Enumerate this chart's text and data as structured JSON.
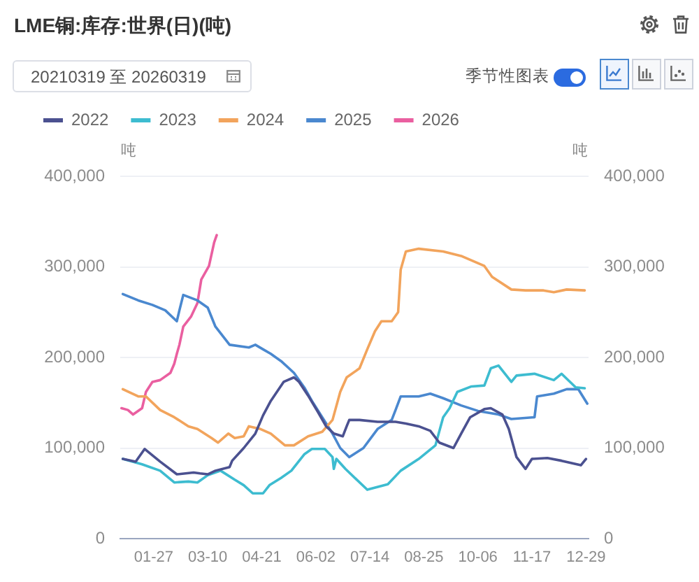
{
  "chart_data": {
    "type": "line",
    "title": "LME铜:库存:世界(日)(吨)",
    "annotations": [
      "20210319 至 20260319",
      "季节性图表"
    ],
    "ylabel": "吨",
    "y2label": "吨",
    "xlim": [
      "--01-01",
      "--12-31"
    ],
    "xticks": [
      {
        "value": "--01-27",
        "label": "01-27"
      },
      {
        "value": "--03-10",
        "label": "03-10"
      },
      {
        "value": "--04-21",
        "label": "04-21"
      },
      {
        "value": "--06-02",
        "label": "06-02"
      },
      {
        "value": "--07-14",
        "label": "07-14"
      },
      {
        "value": "--08-25",
        "label": "08-25"
      },
      {
        "value": "--10-06",
        "label": "10-06"
      },
      {
        "value": "--11-17",
        "label": "11-17"
      },
      {
        "value": "--12-29",
        "label": "12-29"
      }
    ],
    "ylim": [
      0,
      400000
    ],
    "yticks": [
      0,
      {
        "value": 100000,
        "label": "100,000"
      },
      {
        "value": 200000,
        "label": "200,000"
      },
      {
        "value": 300000,
        "label": "300,000"
      },
      {
        "value": 400000,
        "label": "400,000"
      }
    ],
    "y2lim": [
      0,
      400000
    ],
    "y2ticks": [
      0,
      {
        "value": 100000,
        "label": "100,000"
      },
      {
        "value": 200000,
        "label": "200,000"
      },
      {
        "value": 300000,
        "label": "300,000"
      },
      {
        "value": 400000,
        "label": "400,000"
      }
    ],
    "grid": "y",
    "legend": "top left",
    "marker": "none",
    "series": [
      {
        "name": "2022",
        "color": "#4b5190",
        "x": [
          "--01-03",
          "--01-13",
          "--01-20",
          "--02-01",
          "--02-14",
          "--02-27",
          "--03-04",
          "--03-10",
          "--03-16",
          "--03-27",
          "--03-29",
          "--04-07",
          "--04-16",
          "--04-22",
          "--04-28",
          "--05-08",
          "--05-16",
          "--05-20",
          "--05-27",
          "--06-04",
          "--06-10",
          "--06-16",
          "--06-23",
          "--06-26",
          "--06-28",
          "--07-06",
          "--07-20",
          "--08-03",
          "--08-11",
          "--08-21",
          "--08-30",
          "--09-06",
          "--09-17",
          "--09-23",
          "--09-30",
          "--10-11",
          "--10-16",
          "--10-25",
          "--10-30",
          "--11-05",
          "--11-12",
          "--11-17",
          "--11-29",
          "--12-10",
          "--12-25",
          "--12-29"
        ],
        "values": [
          88000,
          85000,
          99000,
          85000,
          71000,
          73000,
          72000,
          71000,
          75000,
          79000,
          86000,
          100000,
          116000,
          136000,
          152000,
          173000,
          178000,
          173000,
          158000,
          139000,
          124000,
          116000,
          113000,
          124000,
          131000,
          131000,
          129000,
          129000,
          127000,
          124000,
          119000,
          106000,
          100000,
          116000,
          134000,
          143000,
          144000,
          137000,
          121000,
          90000,
          77000,
          88000,
          89000,
          86000,
          81000,
          88000
        ]
      },
      {
        "name": "2023",
        "color": "#3dbcd0",
        "x": [
          "--01-03",
          "--01-18",
          "--02-01",
          "--02-12",
          "--02-23",
          "--03-02",
          "--03-10",
          "--03-20",
          "--03-31",
          "--04-07",
          "--04-14",
          "--04-22",
          "--04-27",
          "--05-06",
          "--05-14",
          "--05-24",
          "--05-30",
          "--06-09",
          "--06-15",
          "--06-16",
          "--06-18",
          "--06-25",
          "--07-12",
          "--07-28",
          "--08-07",
          "--08-21",
          "--09-03",
          "--09-09",
          "--09-14",
          "--09-20",
          "--10-01",
          "--10-11",
          "--10-16",
          "--10-22",
          "--11-01",
          "--11-05",
          "--11-19",
          "--12-04",
          "--12-10",
          "--12-21",
          "--12-28"
        ],
        "values": [
          88000,
          82000,
          75000,
          62000,
          63000,
          62000,
          70000,
          75000,
          65000,
          59000,
          50000,
          50000,
          59000,
          67000,
          75000,
          93000,
          99000,
          99000,
          90000,
          77000,
          88000,
          77000,
          54000,
          60000,
          75000,
          88000,
          103000,
          134000,
          144000,
          162000,
          168000,
          169000,
          188000,
          191000,
          173000,
          180000,
          182000,
          175000,
          182000,
          167000,
          166000
        ]
      },
      {
        "name": "2024",
        "color": "#f2a45c",
        "x": [
          "--01-03",
          "--01-15",
          "--01-21",
          "--02-01",
          "--02-12",
          "--02-23",
          "--03-02",
          "--03-13",
          "--03-18",
          "--03-26",
          "--03-31",
          "--04-07",
          "--04-11",
          "--04-20",
          "--04-28",
          "--05-09",
          "--05-16",
          "--05-27",
          "--06-07",
          "--06-15",
          "--06-21",
          "--06-26",
          "--07-06",
          "--07-12",
          "--07-18",
          "--07-23",
          "--07-31",
          "--08-05",
          "--08-07",
          "--08-11",
          "--08-21",
          "--09-09",
          "--09-23",
          "--10-11",
          "--10-17",
          "--11-01",
          "--11-12",
          "--11-26",
          "--12-04",
          "--12-14",
          "--12-28"
        ],
        "values": [
          165000,
          157000,
          157000,
          142000,
          134000,
          124000,
          121000,
          111000,
          106000,
          116000,
          111000,
          113000,
          124000,
          121000,
          116000,
          103000,
          103000,
          113000,
          118000,
          131000,
          162000,
          178000,
          188000,
          209000,
          229000,
          240000,
          240000,
          250000,
          297000,
          317000,
          320000,
          317000,
          312000,
          301000,
          289000,
          275000,
          274000,
          274000,
          272000,
          275000,
          274000
        ]
      },
      {
        "name": "2025",
        "color": "#4a88cf",
        "x": [
          "--01-03",
          "--01-15",
          "--01-26",
          "--02-05",
          "--02-14",
          "--02-16",
          "--02-19",
          "--03-02",
          "--03-10",
          "--03-16",
          "--03-27",
          "--04-11",
          "--04-16",
          "--04-22",
          "--04-28",
          "--05-06",
          "--05-16",
          "--05-24",
          "--05-30",
          "--06-07",
          "--06-15",
          "--06-21",
          "--06-28",
          "--07-09",
          "--07-20",
          "--07-31",
          "--08-03",
          "--08-07",
          "--08-21",
          "--08-30",
          "--09-09",
          "--09-23",
          "--10-06",
          "--10-22",
          "--11-01",
          "--11-19",
          "--11-21",
          "--12-04",
          "--12-14",
          "--12-23",
          "--12-30"
        ],
        "values": [
          270000,
          263000,
          258000,
          252000,
          240000,
          252000,
          269000,
          263000,
          255000,
          234000,
          214000,
          211000,
          214000,
          209000,
          204000,
          196000,
          183000,
          167000,
          152000,
          134000,
          116000,
          100000,
          90000,
          100000,
          121000,
          131000,
          142000,
          157000,
          157000,
          160000,
          155000,
          147000,
          141000,
          137000,
          132000,
          134000,
          157000,
          160000,
          165000,
          165000,
          149000
        ]
      },
      {
        "name": "2026",
        "color": "#ea5fa0",
        "x": [
          "--01-02",
          "--01-07",
          "--01-11",
          "--01-18",
          "--01-21",
          "--01-26",
          "--02-01",
          "--02-09",
          "--02-12",
          "--02-14",
          "--02-16",
          "--02-19",
          "--02-25",
          "--03-02",
          "--03-05",
          "--03-11",
          "--03-15",
          "--03-17"
        ],
        "values": [
          144000,
          142000,
          137000,
          144000,
          162000,
          173000,
          175000,
          183000,
          193000,
          204000,
          214000,
          234000,
          245000,
          260000,
          286000,
          301000,
          327000,
          335000
        ]
      }
    ]
  }
}
